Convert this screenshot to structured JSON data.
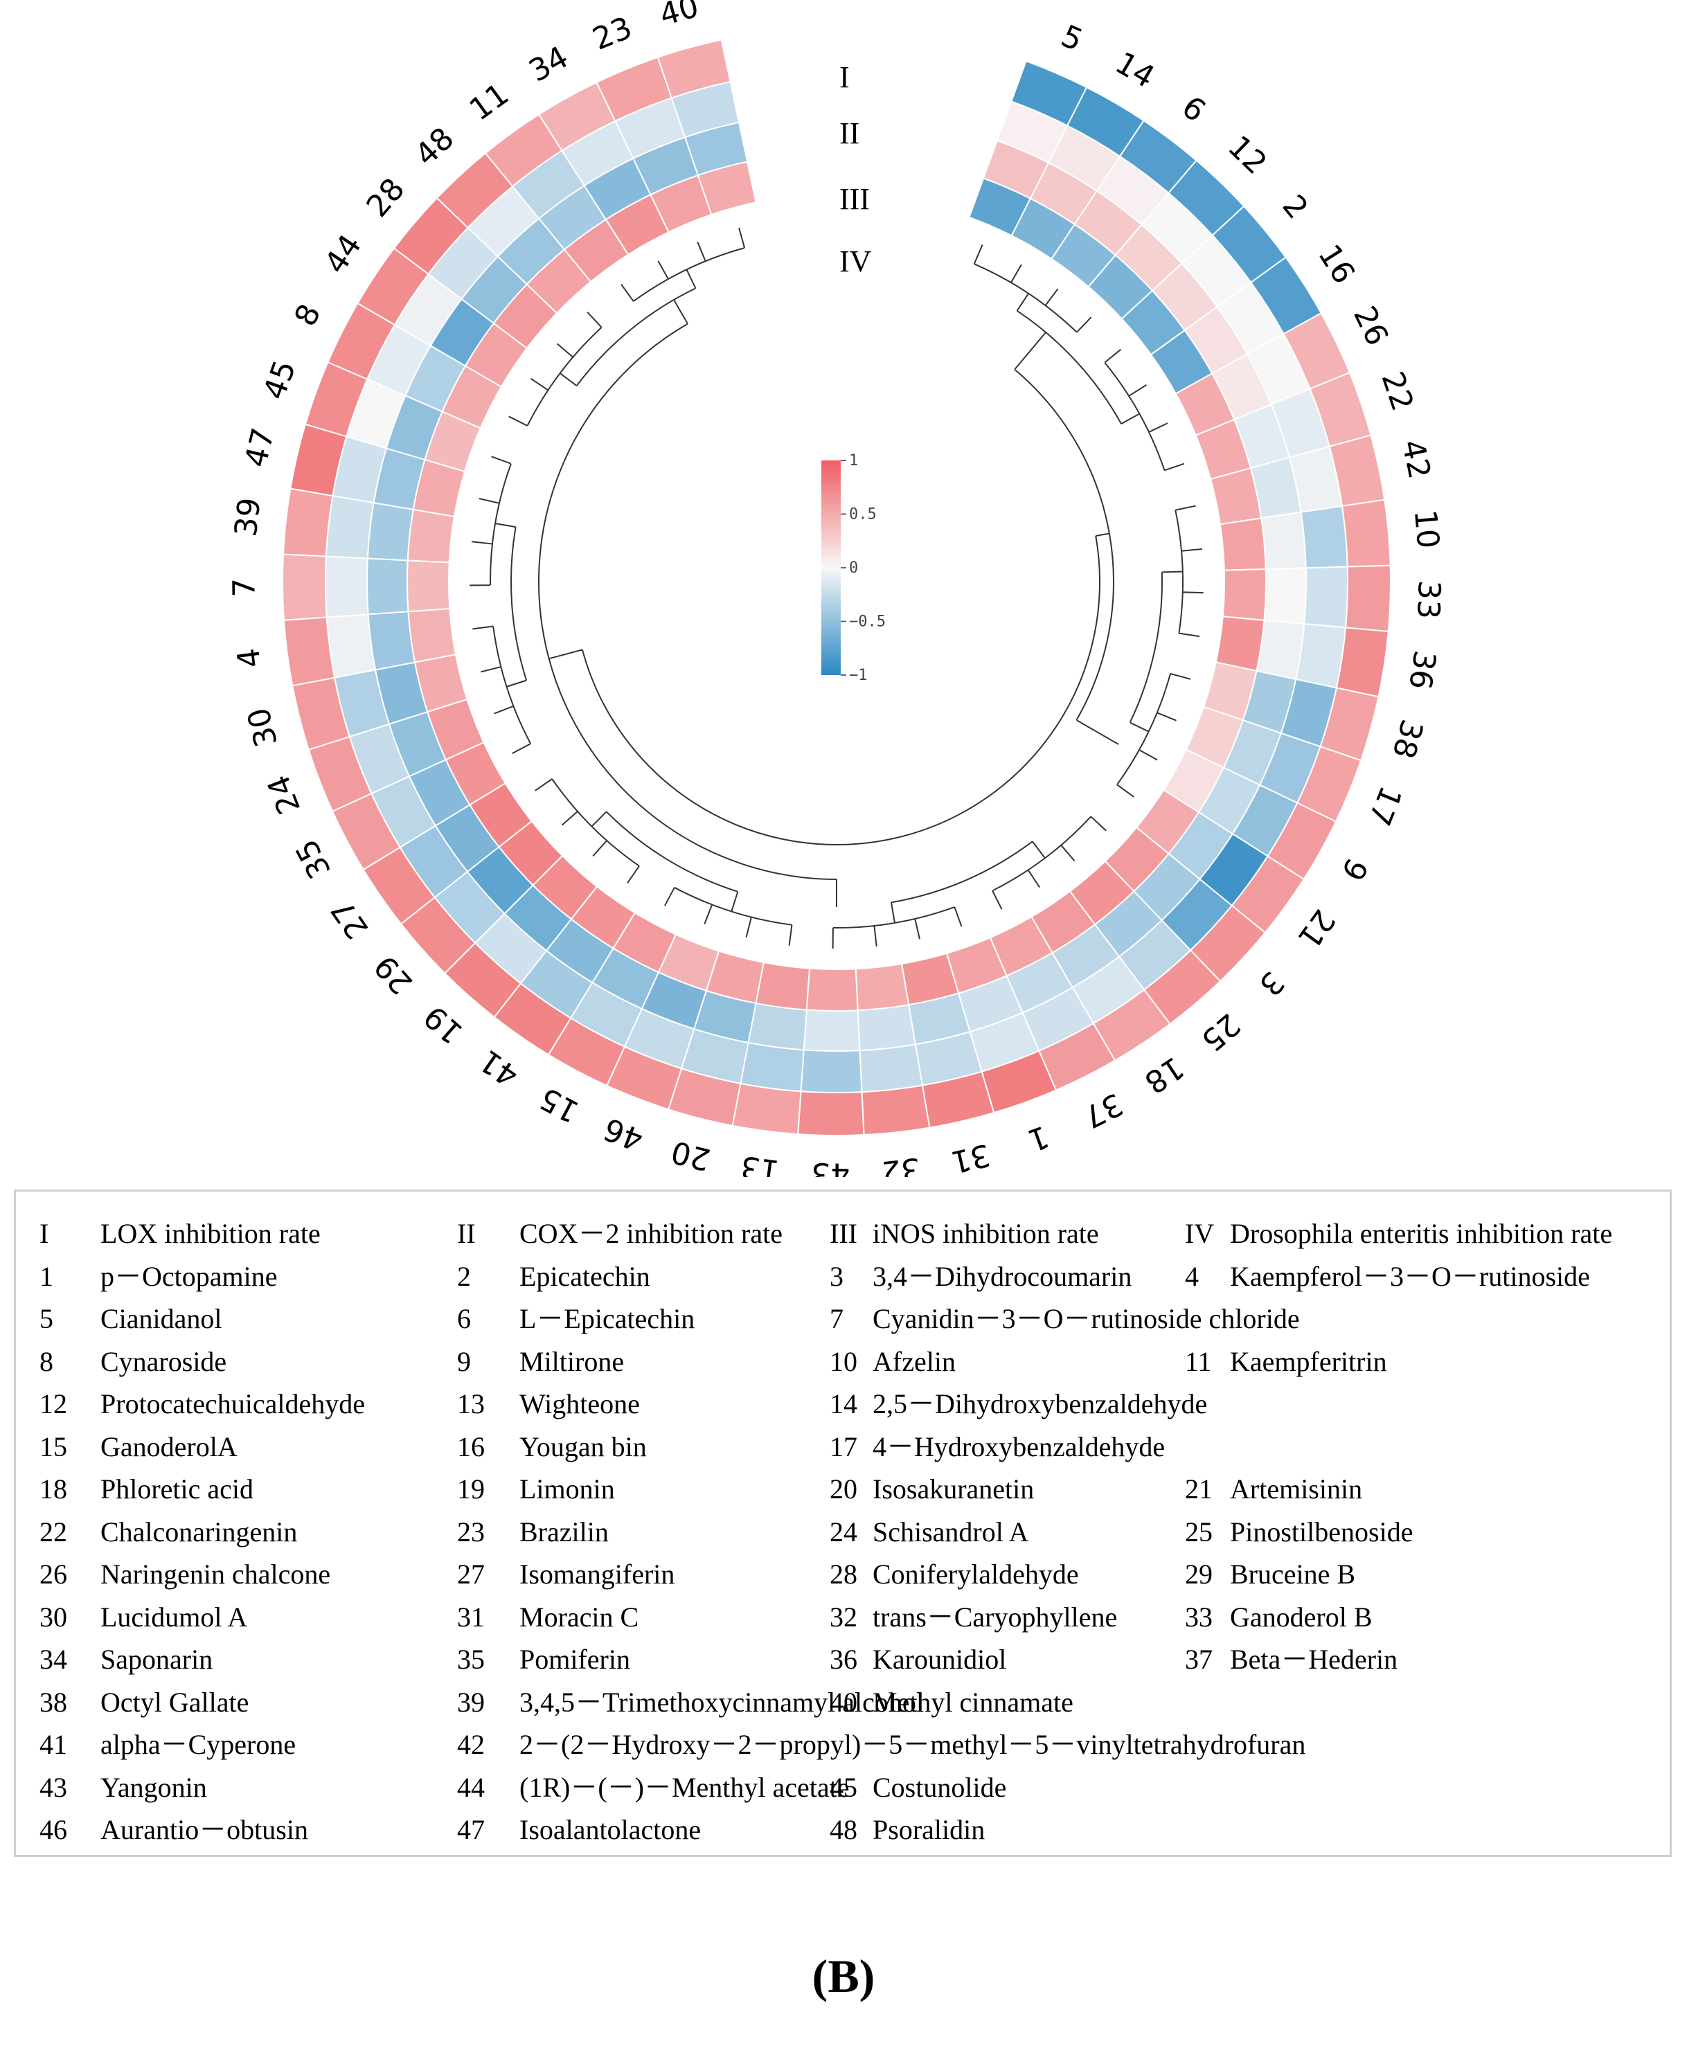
{
  "chart_data": {
    "type": "heatmap",
    "layout": "circular",
    "sectors": [
      "5",
      "14",
      "6",
      "12",
      "2",
      "16",
      "26",
      "22",
      "42",
      "10",
      "33",
      "36",
      "38",
      "17",
      "9",
      "21",
      "3",
      "25",
      "18",
      "37",
      "1",
      "31",
      "32",
      "43",
      "13",
      "20",
      "46",
      "15",
      "41",
      "19",
      "29",
      "27",
      "35",
      "24",
      "30",
      "4",
      "7",
      "39",
      "47",
      "45",
      "8",
      "44",
      "28",
      "48",
      "11",
      "34",
      "23",
      "40"
    ],
    "rings": [
      "I",
      "II",
      "III",
      "IV"
    ],
    "values": [
      [
        -0.85,
        0.05,
        0.35,
        -0.75
      ],
      [
        -0.85,
        0.1,
        0.3,
        -0.6
      ],
      [
        -0.8,
        0.05,
        0.3,
        -0.55
      ],
      [
        -0.8,
        0.0,
        0.25,
        -0.6
      ],
      [
        -0.8,
        0.0,
        0.2,
        -0.65
      ],
      [
        -0.8,
        0.0,
        0.15,
        -0.7
      ],
      [
        0.45,
        0.0,
        0.1,
        0.5
      ],
      [
        0.45,
        -0.1,
        -0.1,
        0.5
      ],
      [
        0.5,
        -0.05,
        -0.15,
        0.5
      ],
      [
        0.55,
        -0.35,
        -0.05,
        0.55
      ],
      [
        0.6,
        -0.2,
        0.0,
        0.55
      ],
      [
        0.7,
        -0.15,
        -0.05,
        0.65
      ],
      [
        0.55,
        -0.55,
        -0.4,
        0.3
      ],
      [
        0.55,
        -0.45,
        -0.3,
        0.25
      ],
      [
        0.6,
        -0.5,
        -0.25,
        0.15
      ],
      [
        0.6,
        -0.9,
        -0.35,
        0.5
      ],
      [
        0.65,
        -0.7,
        -0.4,
        0.6
      ],
      [
        0.65,
        -0.3,
        -0.4,
        0.65
      ],
      [
        0.55,
        -0.15,
        -0.3,
        0.6
      ],
      [
        0.6,
        -0.2,
        -0.25,
        0.55
      ],
      [
        0.8,
        -0.15,
        -0.2,
        0.55
      ],
      [
        0.75,
        -0.25,
        -0.3,
        0.65
      ],
      [
        0.7,
        -0.25,
        -0.2,
        0.5
      ],
      [
        0.7,
        -0.4,
        -0.15,
        0.55
      ],
      [
        0.55,
        -0.35,
        -0.3,
        0.6
      ],
      [
        0.6,
        -0.3,
        -0.5,
        0.55
      ],
      [
        0.65,
        -0.25,
        -0.6,
        0.45
      ],
      [
        0.7,
        -0.3,
        -0.5,
        0.6
      ],
      [
        0.75,
        -0.4,
        -0.55,
        0.65
      ],
      [
        0.75,
        -0.2,
        -0.65,
        0.7
      ],
      [
        0.7,
        -0.35,
        -0.75,
        0.75
      ],
      [
        0.7,
        -0.45,
        -0.6,
        0.75
      ],
      [
        0.6,
        -0.3,
        -0.55,
        0.65
      ],
      [
        0.6,
        -0.25,
        -0.5,
        0.6
      ],
      [
        0.6,
        -0.35,
        -0.55,
        0.5
      ],
      [
        0.6,
        -0.05,
        -0.45,
        0.45
      ],
      [
        0.45,
        -0.1,
        -0.4,
        0.4
      ],
      [
        0.55,
        -0.2,
        -0.4,
        0.45
      ],
      [
        0.8,
        -0.2,
        -0.45,
        0.5
      ],
      [
        0.7,
        0.0,
        -0.5,
        0.4
      ],
      [
        0.7,
        -0.1,
        -0.35,
        0.5
      ],
      [
        0.7,
        -0.05,
        -0.7,
        0.55
      ],
      [
        0.75,
        -0.2,
        -0.5,
        0.6
      ],
      [
        0.7,
        -0.1,
        -0.45,
        0.55
      ],
      [
        0.55,
        -0.3,
        -0.4,
        0.6
      ],
      [
        0.45,
        -0.15,
        -0.55,
        0.65
      ],
      [
        0.55,
        -0.15,
        -0.5,
        0.55
      ],
      [
        0.5,
        -0.25,
        -0.45,
        0.5
      ]
    ],
    "colorbar": {
      "ticks": [
        "1",
        "0.5",
        "0",
        "−0.5",
        "−1"
      ],
      "range": [
        -1,
        1
      ],
      "colors": {
        "low": "#2a88c3",
        "mid": "#f7f7f7",
        "high": "#ef5e62"
      }
    }
  },
  "legend": {
    "rows": [
      [
        [
          "I",
          "LOX inhibition rate"
        ],
        [
          "II",
          "COX－2 inhibition rate"
        ],
        [
          "III",
          "iNOS inhibition rate"
        ],
        [
          "IV",
          "Drosophila enteritis inhibition rate"
        ]
      ],
      [
        [
          "1",
          "p－Octopamine"
        ],
        [
          "2",
          "Epicatechin"
        ],
        [
          "3",
          "3,4－Dihydrocoumarin"
        ],
        [
          "4",
          "Kaempferol－3－O－rutinoside"
        ]
      ],
      [
        [
          "5",
          "Cianidanol"
        ],
        [
          "6",
          "L－Epicatechin"
        ],
        [
          "7",
          "Cyanidin－3－O－rutinoside chloride"
        ]
      ],
      [
        [
          "8",
          "Cynaroside"
        ],
        [
          "9",
          "Miltirone"
        ],
        [
          "10",
          "Afzelin"
        ],
        [
          "11",
          "Kaempferitrin"
        ]
      ],
      [
        [
          "12",
          "Protocatechuicaldehyde"
        ],
        [
          "13",
          "Wighteone"
        ],
        [
          "14",
          "2,5－Dihydroxybenzaldehyde"
        ]
      ],
      [
        [
          "15",
          "GanoderolA"
        ],
        [
          "16",
          "Yougan bin"
        ],
        [
          "17",
          "4－Hydroxybenzaldehyde"
        ]
      ],
      [
        [
          "18",
          "Phloretic acid"
        ],
        [
          "19",
          "Limonin"
        ],
        [
          "20",
          "Isosakuranetin"
        ],
        [
          "21",
          "Artemisinin"
        ]
      ],
      [
        [
          "22",
          "Chalconaringenin"
        ],
        [
          "23",
          "Brazilin"
        ],
        [
          "24",
          "Schisandrol A"
        ],
        [
          "25",
          "Pinostilbenoside"
        ]
      ],
      [
        [
          "26",
          "Naringenin chalcone"
        ],
        [
          "27",
          "Isomangiferin"
        ],
        [
          "28",
          "Coniferylaldehyde"
        ],
        [
          "29",
          "Bruceine B"
        ]
      ],
      [
        [
          "30",
          "Lucidumol A"
        ],
        [
          "31",
          "Moracin C"
        ],
        [
          "32",
          "trans－Caryophyllene"
        ],
        [
          "33",
          "Ganoderol B"
        ]
      ],
      [
        [
          "34",
          "Saponarin"
        ],
        [
          "35",
          "Pomiferin"
        ],
        [
          "36",
          "Karounidiol"
        ],
        [
          "37",
          "Beta－Hederin"
        ]
      ],
      [
        [
          "38",
          "Octyl Gallate"
        ],
        [
          "39",
          "3,4,5－Trimethoxycinnamyl alcohol"
        ],
        [
          "40",
          "Methyl cinnamate"
        ]
      ],
      [
        [
          "41",
          "alpha－Cyperone"
        ],
        [
          "42",
          "2－(2－Hydroxy－2－propyl)－5－methyl－5－vinyltetrahydrofuran"
        ]
      ],
      [
        [
          "43",
          "Yangonin"
        ],
        [
          "44",
          "(1R)－(－)－Menthyl acetate"
        ],
        [
          "45",
          "Costunolide"
        ]
      ],
      [
        [
          "46",
          "Aurantio－obtusin"
        ],
        [
          "47",
          "Isoalantolactone"
        ],
        [
          "48",
          "Psoralidin"
        ]
      ]
    ]
  },
  "panel_label": "(B)"
}
